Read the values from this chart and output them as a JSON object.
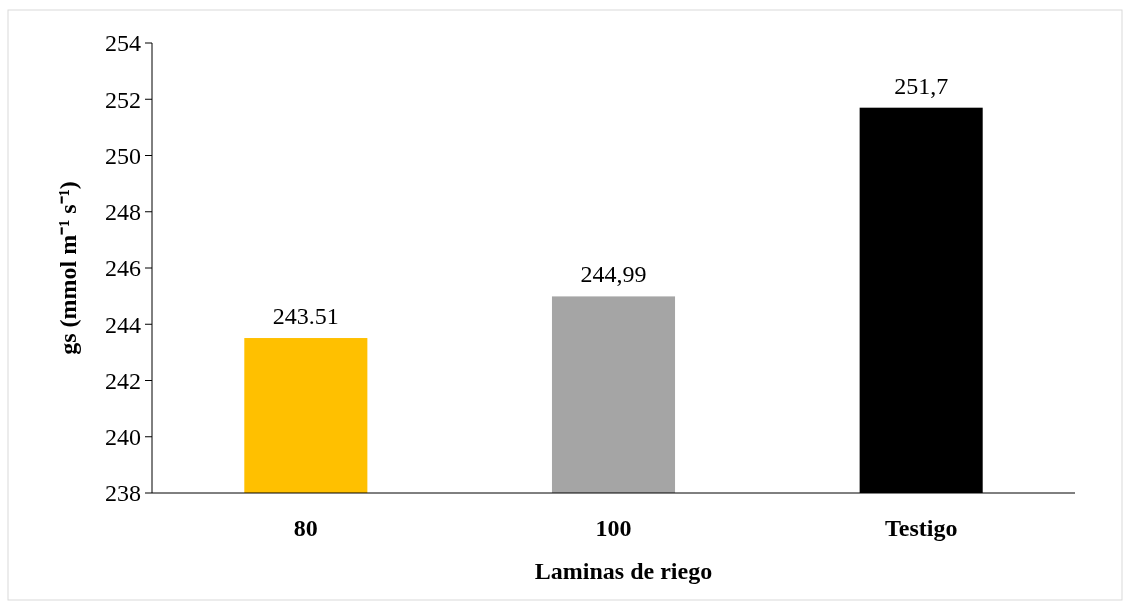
{
  "chart_data": {
    "type": "bar",
    "xlabel": "Laminas de riego",
    "ylabel": "gs (mmol m⁻¹ s⁻¹)",
    "categories": [
      "80",
      "100",
      "Testigo"
    ],
    "values": [
      243.51,
      244.99,
      251.7
    ],
    "colors": [
      "#ffc000",
      "#a5a5a5",
      "#000000"
    ],
    "value_labels": [
      "243.51",
      "244,99",
      "251,7"
    ],
    "ylim": [
      238,
      254
    ],
    "yticks": [
      238,
      240,
      242,
      244,
      246,
      248,
      250,
      252,
      254
    ],
    "grid": false
  }
}
